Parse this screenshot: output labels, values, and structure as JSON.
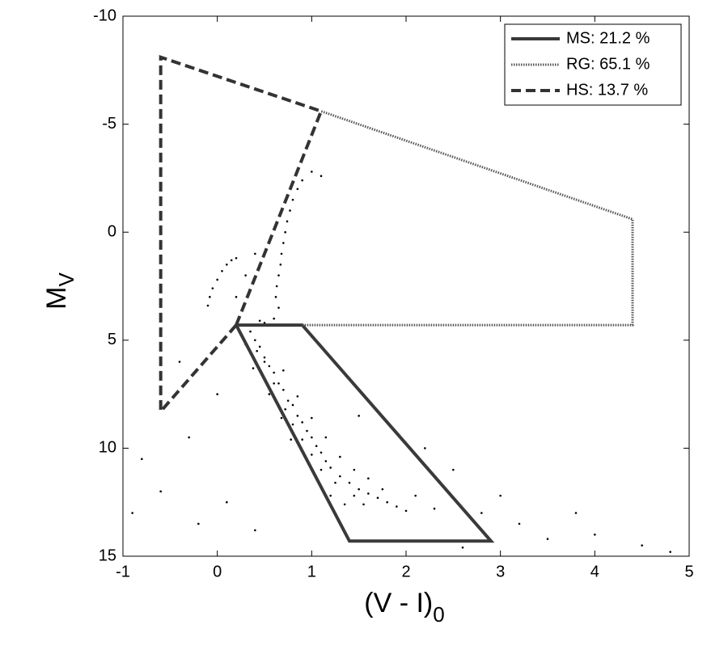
{
  "chart_data": {
    "type": "scatter",
    "xlabel": "(V - I)",
    "xlabel_sub": "0",
    "ylabel": "M",
    "ylabel_sub": "V",
    "xlim": [
      -1,
      5
    ],
    "xticks": [
      -1,
      0,
      1,
      2,
      3,
      4,
      5
    ],
    "ylim": [
      -10,
      15
    ],
    "yticks": [
      -10,
      -5,
      0,
      5,
      10,
      15
    ],
    "y_inverted": true,
    "legend": "upper right",
    "point_color": "#000000",
    "points": {
      "x": [
        0.35,
        0.4,
        0.45,
        0.5,
        0.42,
        0.55,
        0.6,
        0.5,
        0.65,
        0.7,
        0.6,
        0.75,
        0.8,
        0.72,
        0.85,
        0.9,
        0.8,
        0.95,
        1.0,
        0.9,
        1.05,
        1.1,
        1.0,
        1.15,
        1.2,
        1.1,
        1.3,
        1.4,
        1.25,
        1.5,
        1.6,
        1.45,
        1.7,
        1.8,
        1.55,
        1.9,
        2.0,
        0.3,
        0.38,
        0.55,
        0.68,
        0.78,
        0.95,
        1.05,
        1.2,
        1.35,
        0.7,
        0.85,
        1.0,
        1.15,
        1.3,
        1.45,
        1.6,
        1.75,
        2.1,
        2.3,
        0.6,
        0.65,
        0.62,
        0.63,
        0.65,
        0.67,
        0.68,
        0.7,
        0.72,
        0.74,
        0.77,
        0.8,
        0.85,
        0.9,
        1.0,
        1.1,
        0.5,
        0.45,
        0.4,
        0.2,
        0.15,
        0.1,
        0.05,
        0.0,
        -0.05,
        -0.08,
        -0.1,
        -0.8,
        -0.6,
        -0.3,
        0.0,
        0.1,
        -0.2,
        0.4,
        2.5,
        2.8,
        3.2,
        3.5,
        3.0,
        4.0,
        4.5,
        2.6,
        0.2,
        0.3,
        0.4,
        -0.4,
        1.5,
        2.2,
        3.8,
        4.8,
        -0.9
      ],
      "y": [
        4.6,
        5.0,
        5.3,
        5.8,
        5.5,
        6.2,
        6.5,
        6.0,
        7.0,
        7.3,
        7.0,
        7.8,
        8.0,
        8.2,
        8.5,
        8.8,
        8.9,
        9.2,
        9.5,
        9.6,
        9.9,
        10.2,
        10.3,
        10.6,
        10.9,
        11.0,
        11.3,
        11.6,
        11.6,
        11.9,
        12.1,
        12.2,
        12.3,
        12.5,
        12.6,
        12.7,
        12.9,
        5.2,
        6.3,
        7.5,
        8.6,
        9.6,
        10.6,
        11.4,
        12.2,
        12.6,
        6.4,
        7.6,
        8.6,
        9.5,
        10.4,
        11.0,
        11.4,
        11.9,
        12.2,
        12.8,
        4.0,
        3.5,
        3.0,
        2.5,
        2.0,
        1.5,
        1.0,
        0.5,
        0.0,
        -0.5,
        -1.0,
        -1.5,
        -2.0,
        -2.4,
        -2.8,
        -2.6,
        4.2,
        4.1,
        4.3,
        1.2,
        1.3,
        1.5,
        1.8,
        2.2,
        2.6,
        3.0,
        3.4,
        10.5,
        12.0,
        9.5,
        7.5,
        12.5,
        13.5,
        13.8,
        11.0,
        13.0,
        13.5,
        14.2,
        12.2,
        14.0,
        14.5,
        14.6,
        3.0,
        2.0,
        1.0,
        6.0,
        8.5,
        10.0,
        13.0,
        14.8,
        13.0
      ]
    },
    "series": [
      {
        "name": "MS: 21.2 %",
        "color": "#3a3a3a",
        "style": "solid",
        "x": [
          0.2,
          0.9,
          2.9,
          1.4,
          0.2
        ],
        "y": [
          4.3,
          4.3,
          14.3,
          14.3,
          4.3
        ]
      },
      {
        "name": "RG: 65.1 %",
        "color": "#555555",
        "style": "dotted",
        "x": [
          0.9,
          4.4,
          4.4,
          1.1
        ],
        "y": [
          4.3,
          4.3,
          -0.6,
          -5.6
        ]
      },
      {
        "name": "HS: 13.7 %",
        "color": "#333333",
        "style": "dashed",
        "x": [
          0.2,
          1.1,
          -0.6,
          -0.6,
          0.2
        ],
        "y": [
          4.3,
          -5.6,
          -8.1,
          8.3,
          4.3
        ]
      }
    ]
  }
}
